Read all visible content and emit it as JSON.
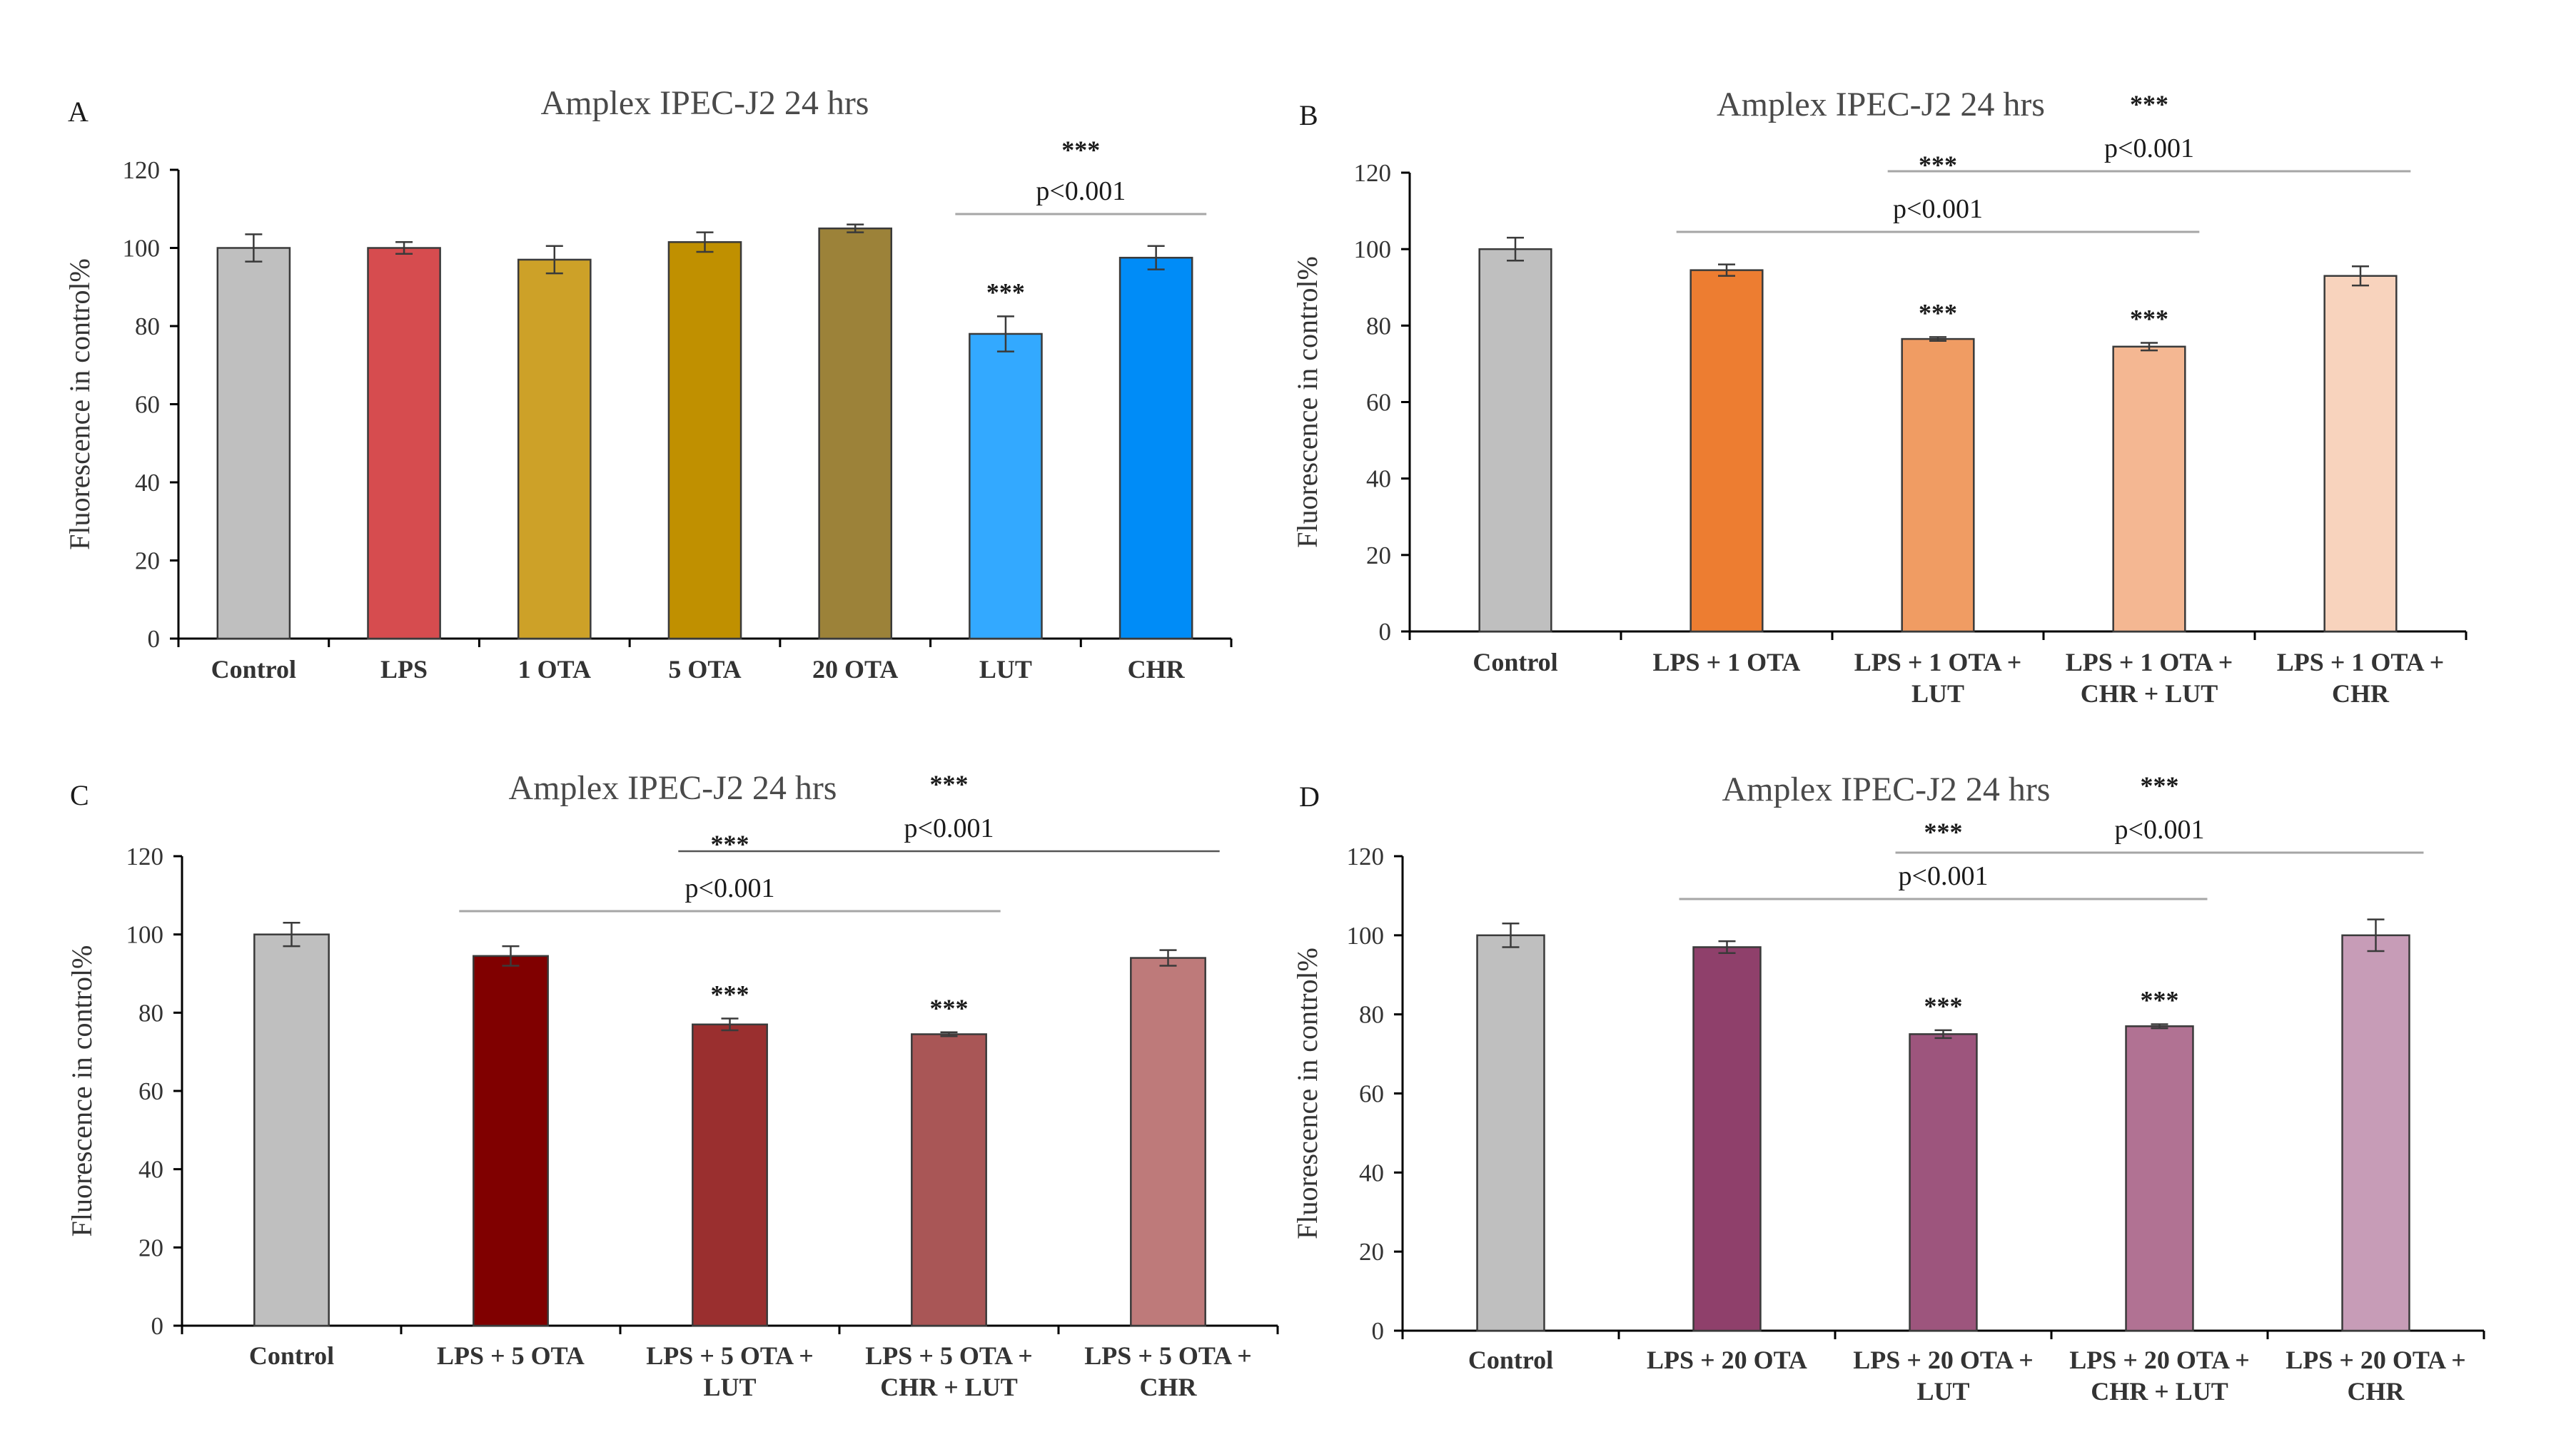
{
  "chart_data": [
    {
      "panel": "A",
      "type": "bar",
      "title": "Amplex IPEC-J2 24 hrs",
      "ylabel": "Fluorescence in control%",
      "xlabel": "",
      "ylim": [
        0,
        120
      ],
      "yticks": [
        0,
        20,
        40,
        60,
        80,
        100,
        120
      ],
      "categories": [
        [
          "Control"
        ],
        [
          "LPS"
        ],
        [
          "1 OTA"
        ],
        [
          "5 OTA"
        ],
        [
          "20 OTA"
        ],
        [
          "LUT"
        ],
        [
          "CHR"
        ]
      ],
      "values": [
        100,
        100,
        97,
        101.5,
        105,
        78,
        97.5
      ],
      "errors": [
        3.5,
        1.5,
        3.5,
        2.5,
        1,
        4.5,
        3
      ],
      "colors": [
        "#bfbfbf",
        "#d64c4f",
        "#cda128",
        "#c09000",
        "#9c8239",
        "#33a9ff",
        "#008cf7"
      ],
      "bar_stars": [
        null,
        null,
        null,
        null,
        null,
        "***",
        null
      ],
      "brackets": [
        {
          "from": 5,
          "to": 6,
          "label": "p<0.001",
          "stars": "***"
        }
      ]
    },
    {
      "panel": "B",
      "type": "bar",
      "title": "Amplex IPEC-J2 24 hrs",
      "ylabel": "Fluorescence in control%",
      "xlabel": "",
      "ylim": [
        0,
        120
      ],
      "yticks": [
        0,
        20,
        40,
        60,
        80,
        100,
        120
      ],
      "categories": [
        [
          "Control"
        ],
        [
          "LPS + 1 OTA"
        ],
        [
          "LPS + 1 OTA +",
          "LUT"
        ],
        [
          "LPS + 1 OTA +",
          "CHR + LUT"
        ],
        [
          "LPS + 1 OTA +",
          "CHR"
        ]
      ],
      "values": [
        100,
        94.5,
        76.5,
        74.5,
        93
      ],
      "errors": [
        3,
        1.5,
        0.5,
        1,
        2.5
      ],
      "colors": [
        "#bfbfbf",
        "#ed7d31",
        "#f09c63",
        "#f4b792",
        "#f8d3bd"
      ],
      "bar_stars": [
        null,
        null,
        "***",
        "***",
        null
      ],
      "brackets": [
        {
          "from": 1,
          "to": 3,
          "label": "p<0.001",
          "stars": "***"
        },
        {
          "from": 2,
          "to": 4,
          "label": "p<0.001",
          "stars": "***"
        }
      ]
    },
    {
      "panel": "C",
      "type": "bar",
      "title": "Amplex IPEC-J2 24 hrs",
      "ylabel": "Fluorescence in control%",
      "xlabel": "",
      "ylim": [
        0,
        120
      ],
      "yticks": [
        0,
        20,
        40,
        60,
        80,
        100,
        120
      ],
      "categories": [
        [
          "Control"
        ],
        [
          "LPS + 5 OTA"
        ],
        [
          "LPS + 5 OTA +",
          "LUT"
        ],
        [
          "LPS + 5 OTA +",
          "CHR + LUT"
        ],
        [
          "LPS + 5 OTA +",
          "CHR"
        ]
      ],
      "values": [
        100,
        94.5,
        77,
        74.5,
        94
      ],
      "errors": [
        3,
        2.5,
        1.5,
        0.5,
        2
      ],
      "colors": [
        "#bfbfbf",
        "#800000",
        "#9a2f2f",
        "#a95656",
        "#be7a7a"
      ],
      "bar_stars": [
        null,
        null,
        "***",
        "***",
        null
      ],
      "brackets": [
        {
          "from": 1,
          "to": 3,
          "label": "p<0.001",
          "stars": "***"
        },
        {
          "from": 2,
          "to": 4,
          "label": "p<0.001",
          "stars": "***"
        }
      ]
    },
    {
      "panel": "D",
      "type": "bar",
      "title": "Amplex IPEC-J2 24 hrs",
      "ylabel": "Fluorescence in control%",
      "xlabel": "",
      "ylim": [
        0,
        120
      ],
      "yticks": [
        0,
        20,
        40,
        60,
        80,
        100,
        120
      ],
      "categories": [
        [
          "Control"
        ],
        [
          "LPS + 20 OTA"
        ],
        [
          "LPS + 20 OTA +",
          "LUT"
        ],
        [
          "LPS + 20 OTA +",
          "CHR + LUT"
        ],
        [
          "LPS + 20 OTA +",
          "CHR"
        ]
      ],
      "values": [
        100,
        97,
        75,
        77,
        100
      ],
      "errors": [
        3,
        1.5,
        1,
        0.5,
        4
      ],
      "colors": [
        "#bfbfbf",
        "#8f406b",
        "#9d557d",
        "#b17293",
        "#c79cb7"
      ],
      "bar_stars": [
        null,
        null,
        "***",
        "***",
        null
      ],
      "brackets": [
        {
          "from": 1,
          "to": 3,
          "label": "p<0.001",
          "stars": "***"
        },
        {
          "from": 2,
          "to": 4,
          "label": "p<0.001",
          "stars": "***"
        }
      ]
    }
  ]
}
